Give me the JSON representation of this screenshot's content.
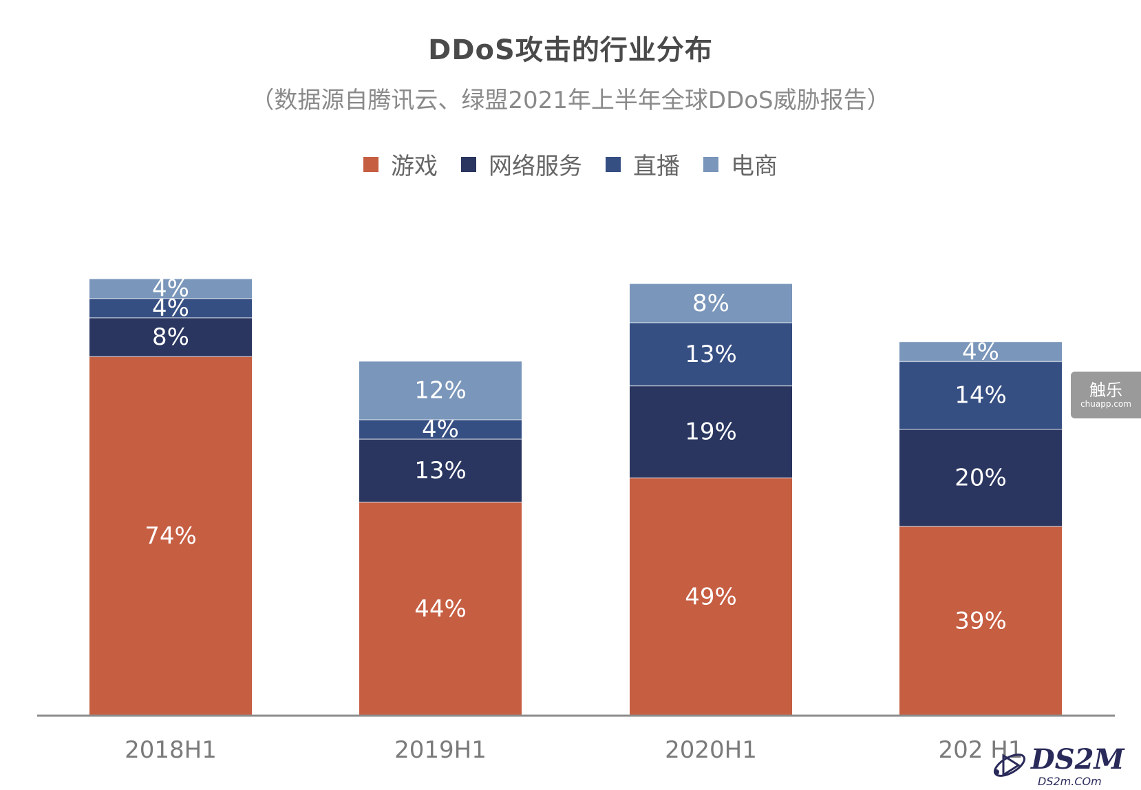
{
  "chart_data": {
    "type": "bar",
    "stacked": true,
    "title": "DDoS攻击的行业分布",
    "subtitle": "（数据源自腾讯云、绿盟2021年上半年全球DDoS威胁报告）",
    "categories": [
      "2018H1",
      "2019H1",
      "2020H1",
      "202 H1"
    ],
    "series": [
      {
        "name": "游戏",
        "color": "#C65E42",
        "values": [
          74,
          44,
          49,
          39
        ],
        "labels": [
          "74%",
          "44%",
          "49%",
          "39%"
        ]
      },
      {
        "name": "网络服务",
        "color": "#2A3660",
        "values": [
          8,
          13,
          19,
          20
        ],
        "labels": [
          "8%",
          "13%",
          "19%",
          "20%"
        ]
      },
      {
        "name": "直播",
        "color": "#364F83",
        "values": [
          4,
          4,
          13,
          14
        ],
        "labels": [
          "4%",
          "4%",
          "13%",
          "14%"
        ]
      },
      {
        "name": "电商",
        "color": "#7A96BA",
        "values": [
          4,
          12,
          8,
          4
        ],
        "labels": [
          "4%",
          "12%",
          "8%",
          "4%"
        ]
      }
    ],
    "legend_position": "top",
    "grid": false,
    "ylim": [
      0,
      100
    ]
  },
  "watermarks": {
    "badge_main": "触乐",
    "badge_sub": "chuapp.com",
    "logo_main": "DS2M",
    "logo_sub": "DS2m.COm"
  }
}
